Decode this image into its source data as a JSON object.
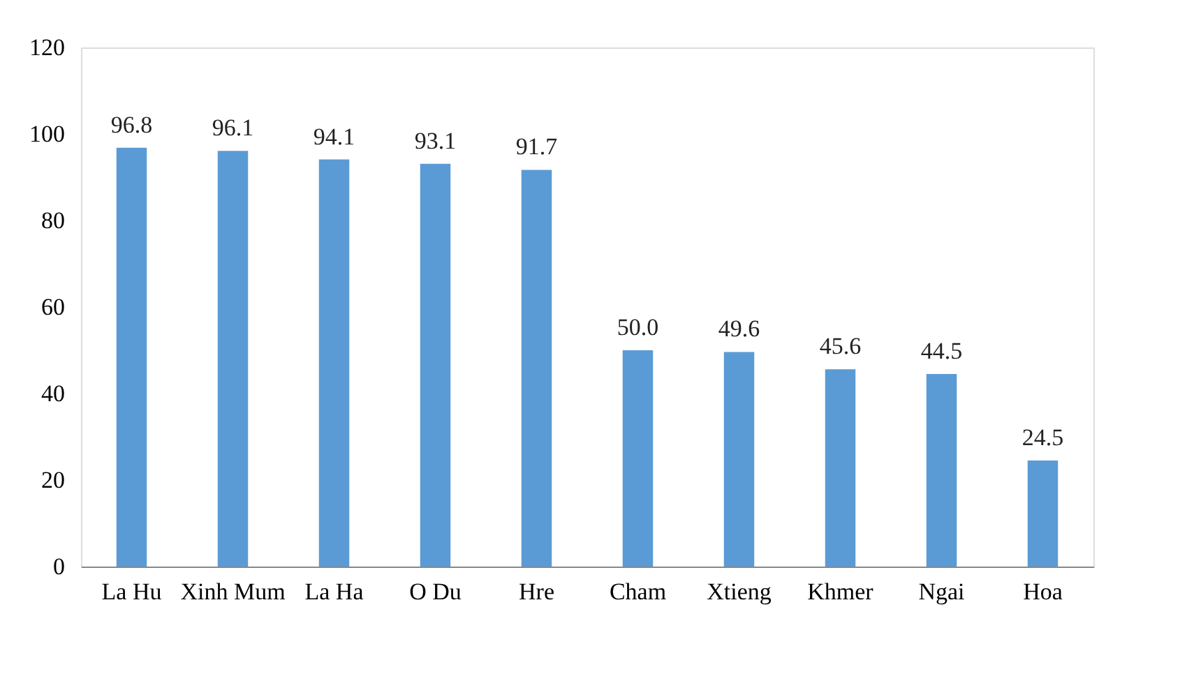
{
  "chart_data": {
    "type": "bar",
    "categories": [
      "La Hu",
      "Xinh Mum",
      "La Ha",
      "O Du",
      "Hre",
      "Cham",
      "Xtieng",
      "Khmer",
      "Ngai",
      "Hoa"
    ],
    "values": [
      96.8,
      96.1,
      94.1,
      93.1,
      91.7,
      50.0,
      49.6,
      45.6,
      44.5,
      24.5
    ],
    "value_labels": [
      "96.8",
      "96.1",
      "94.1",
      "93.1",
      "91.7",
      "50.0",
      "49.6",
      "45.6",
      "44.5",
      "24.5"
    ],
    "color": "#5b9bd5",
    "ylim": [
      0,
      120
    ],
    "yticks": [
      0,
      20,
      40,
      60,
      80,
      100,
      120
    ],
    "grid": false
  }
}
